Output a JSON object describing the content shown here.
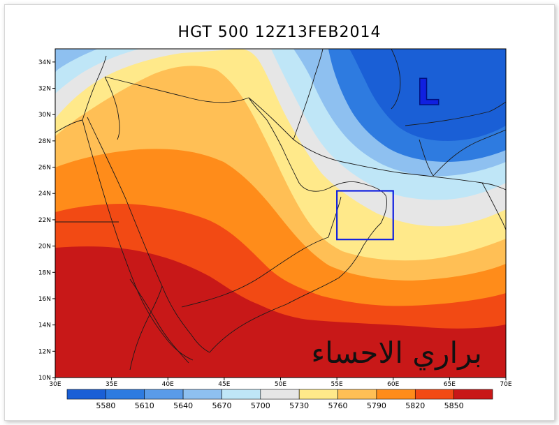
{
  "title": "HGT 500 12Z13FEB2014",
  "low_marker": "L",
  "watermark": "براري الاحساء",
  "lat_ticks": [
    "34N",
    "32N",
    "30N",
    "28N",
    "26N",
    "24N",
    "22N",
    "20N",
    "18N",
    "16N",
    "14N",
    "12N",
    "10N"
  ],
  "lon_ticks": [
    "30E",
    "35E",
    "40E",
    "45E",
    "50E",
    "55E",
    "60E",
    "65E",
    "70E"
  ],
  "colorbar": {
    "labels": [
      "5580",
      "5610",
      "5640",
      "5670",
      "5700",
      "5730",
      "5760",
      "5790",
      "5820",
      "5850"
    ],
    "colors": [
      "#1a5fd6",
      "#2e7be0",
      "#5a9be8",
      "#8ec0f0",
      "#bfe6f7",
      "#e6e6e6",
      "#ffe98a",
      "#ffbf55",
      "#ff8c1a",
      "#f24a14",
      "#c81818"
    ]
  },
  "highlight_box": {
    "lon": [
      55,
      60
    ],
    "lat": [
      20.5,
      24.2
    ],
    "color": "#1020e0"
  }
}
